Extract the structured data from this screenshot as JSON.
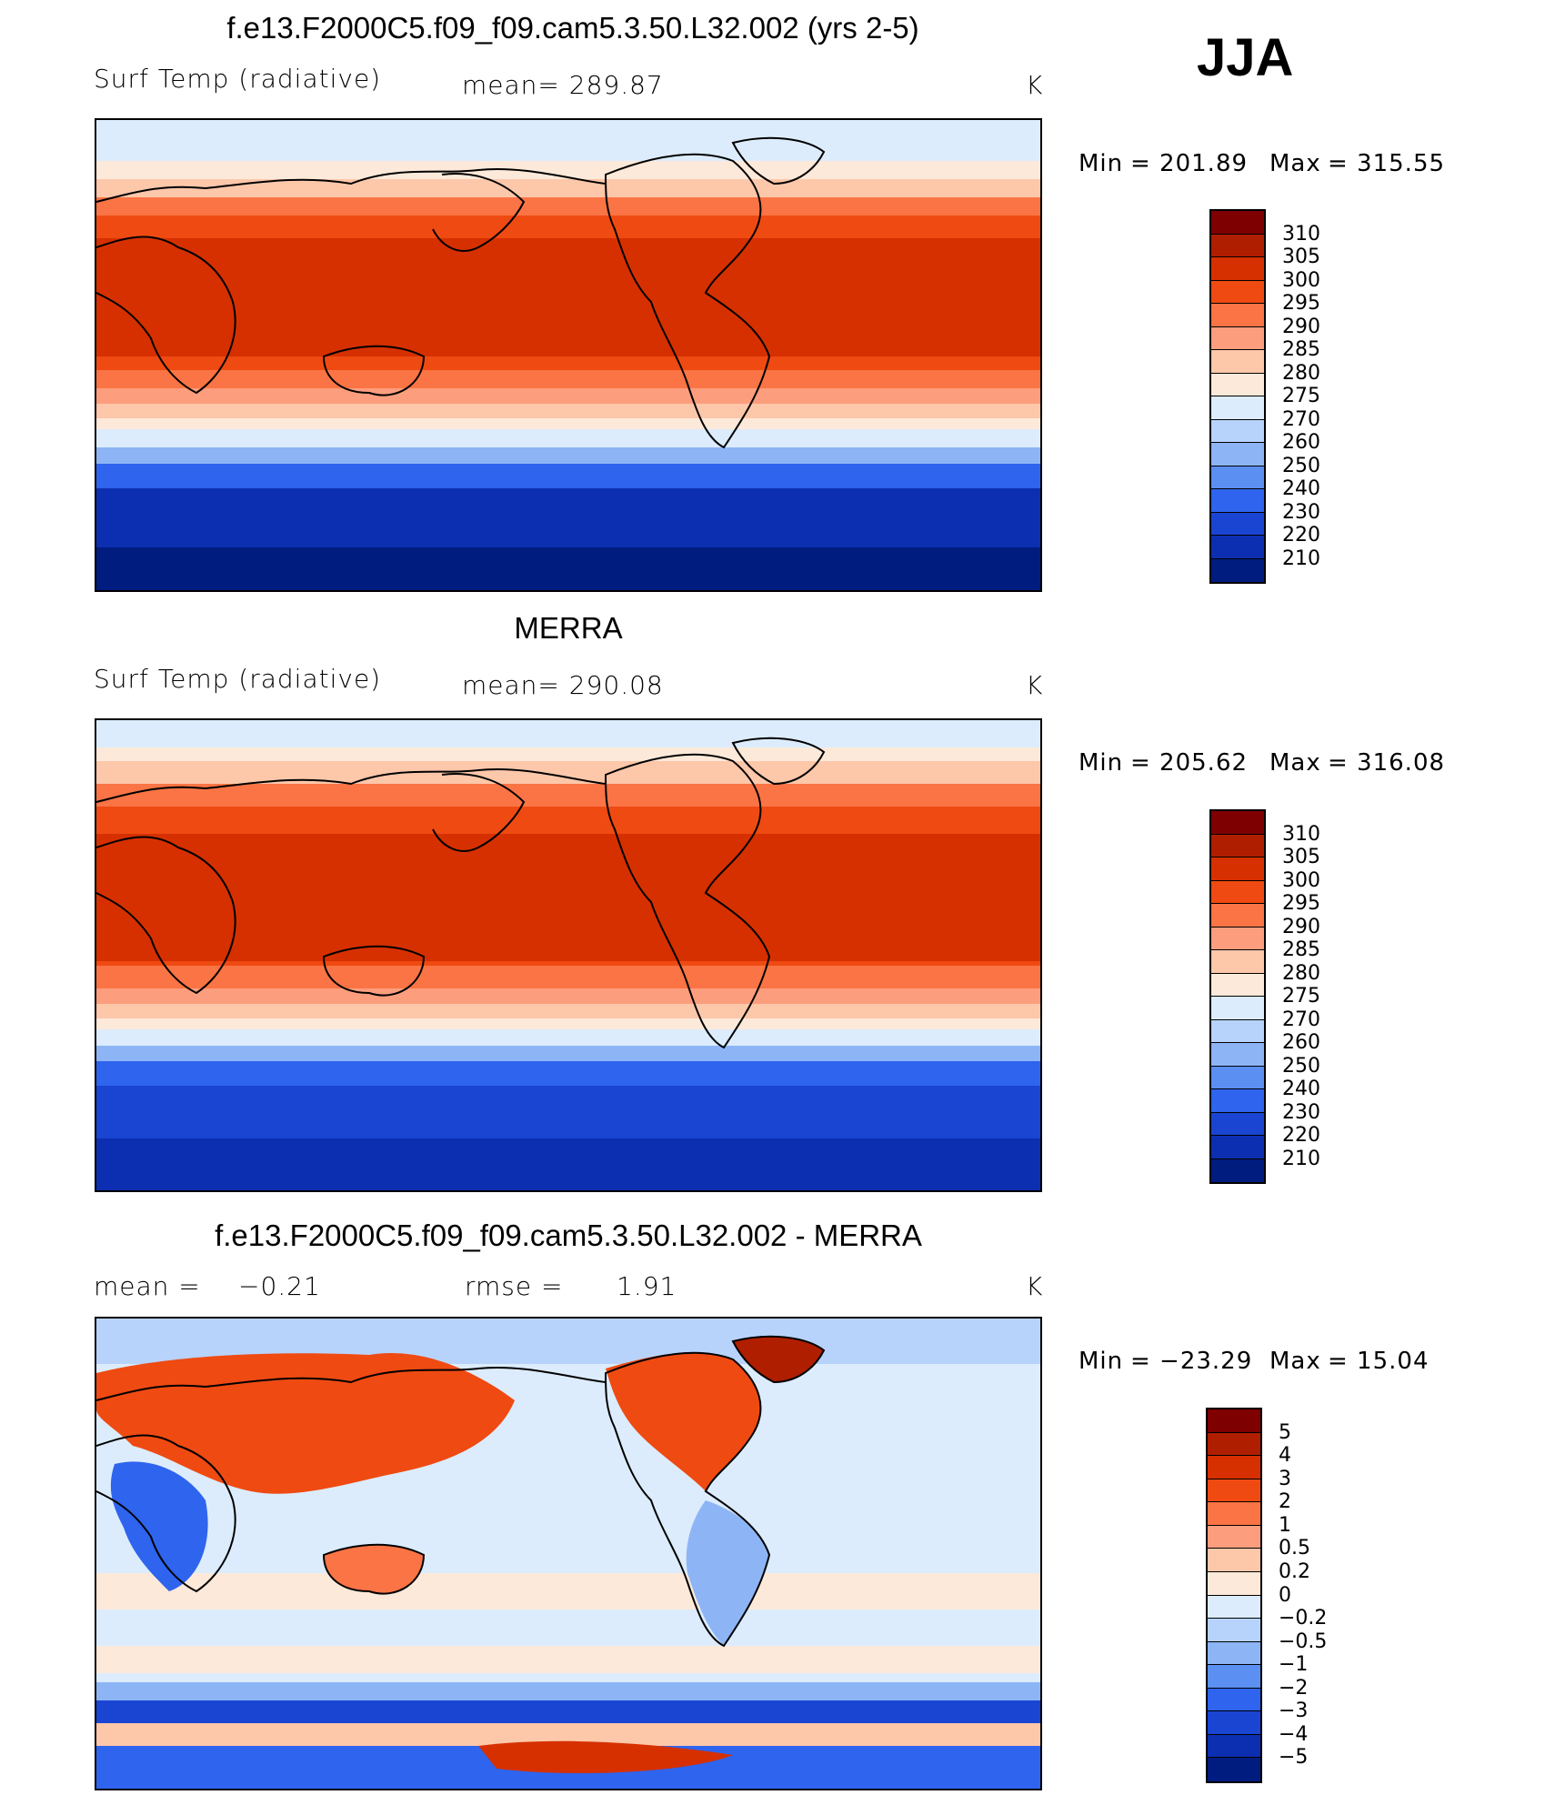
{
  "season": "JJA",
  "panels": [
    {
      "title": "f.e13.F2000C5.f09_f09.cam5.3.50.L32.002 (yrs 2-5)",
      "left_label": "Surf Temp (radiative)",
      "mid_label": "mean= 289.87",
      "right_label": "K",
      "min_label": "Min",
      "min_value": "= 201.89",
      "max_label": "Max",
      "max_value": "= 315.55"
    },
    {
      "title": "MERRA",
      "left_label": "Surf Temp (radiative)",
      "mid_label": "mean= 290.08",
      "right_label": "K",
      "min_label": "Min",
      "min_value": "= 205.62",
      "max_label": "Max",
      "max_value": "= 316.08"
    },
    {
      "title": "f.e13.F2000C5.f09_f09.cam5.3.50.L32.002 - MERRA",
      "left_label": "mean =",
      "left_value": "−0.21",
      "mid_label": "rmse =",
      "mid_value": "1.91",
      "right_label": "K",
      "min_label": "Min",
      "min_value": "= −23.29",
      "max_label": "Max",
      "max_value": "= 15.04"
    }
  ],
  "colorbars": {
    "abs_levels": [
      "310",
      "305",
      "300",
      "295",
      "290",
      "285",
      "280",
      "275",
      "270",
      "260",
      "250",
      "240",
      "230",
      "220",
      "210"
    ],
    "abs_colors": [
      "#7f0000",
      "#b01e00",
      "#d63000",
      "#ef4a12",
      "#fa7445",
      "#fc9e7d",
      "#fdc7aa",
      "#fde9d9",
      "#dcecfd",
      "#b8d3fb",
      "#8db5f6",
      "#5c8ff2",
      "#2e64ee",
      "#1a45d2",
      "#0c2fb2",
      "#001c7f"
    ],
    "diff_levels": [
      "5",
      "4",
      "3",
      "2",
      "1",
      "0.5",
      "0.2",
      "0",
      "−0.2",
      "−0.5",
      "−1",
      "−2",
      "−3",
      "−4",
      "−5"
    ],
    "diff_colors": [
      "#7f0000",
      "#b01e00",
      "#d63000",
      "#ef4a12",
      "#fa7445",
      "#fc9e7d",
      "#fdc7aa",
      "#fde9d9",
      "#dcecfd",
      "#b8d3fb",
      "#8db5f6",
      "#5c8ff2",
      "#2e64ee",
      "#1a45d2",
      "#0c2fb2",
      "#001c7f"
    ]
  }
}
